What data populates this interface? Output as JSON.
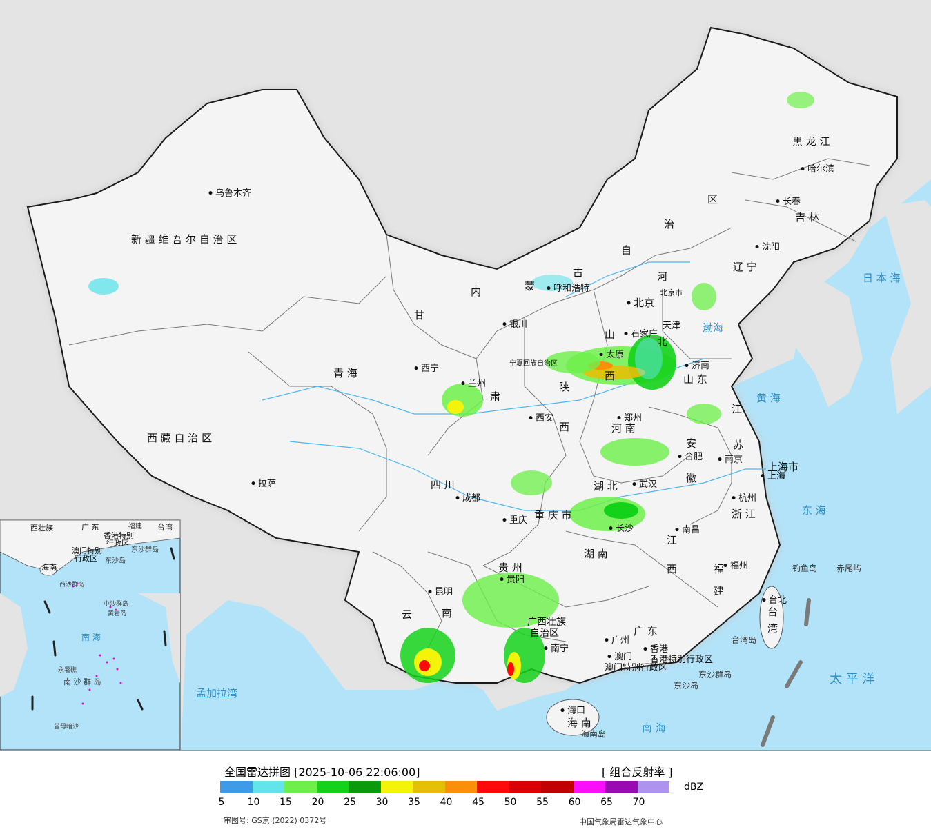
{
  "map": {
    "provinces": [
      {
        "id": "xinjiang",
        "label": "新 疆 维 吾 尔 自 治 区"
      },
      {
        "id": "xizang",
        "label": "西 藏 自 治 区"
      },
      {
        "id": "qinghai",
        "label": "青      海"
      },
      {
        "id": "gansu",
        "label": "甘"
      },
      {
        "id": "gansu2",
        "label": "肃"
      },
      {
        "id": "neimenggu1",
        "label": "内"
      },
      {
        "id": "neimenggu2",
        "label": "蒙"
      },
      {
        "id": "neimenggu3",
        "label": "古"
      },
      {
        "id": "neimenggu4",
        "label": "自"
      },
      {
        "id": "neimenggu5",
        "label": "治"
      },
      {
        "id": "neimenggu6",
        "label": "区"
      },
      {
        "id": "heilongjiang",
        "label": "黑 龙 江"
      },
      {
        "id": "jilin",
        "label": "吉 林"
      },
      {
        "id": "liaoning",
        "label": "辽 宁"
      },
      {
        "id": "hebei",
        "label": "河"
      },
      {
        "id": "hebei2",
        "label": "北"
      },
      {
        "id": "shandong",
        "label": "山 东"
      },
      {
        "id": "shanxi1",
        "label": "山"
      },
      {
        "id": "shanxi2",
        "label": "西"
      },
      {
        "id": "shaanxi1",
        "label": "陕"
      },
      {
        "id": "shaanxi2",
        "label": "西"
      },
      {
        "id": "henan",
        "label": "河 南"
      },
      {
        "id": "jiangsu1",
        "label": "江"
      },
      {
        "id": "jiangsu2",
        "label": "苏"
      },
      {
        "id": "anhui1",
        "label": "安"
      },
      {
        "id": "anhui2",
        "label": "徽"
      },
      {
        "id": "sichuan",
        "label": "四     川"
      },
      {
        "id": "chongqing",
        "label": "重 庆 市"
      },
      {
        "id": "hubei",
        "label": "湖     北"
      },
      {
        "id": "hunan",
        "label": "湖     南"
      },
      {
        "id": "jiangxi1",
        "label": "江"
      },
      {
        "id": "jiangxi2",
        "label": "西"
      },
      {
        "id": "zhejiang",
        "label": "浙 江"
      },
      {
        "id": "fujian1",
        "label": "福"
      },
      {
        "id": "fujian2",
        "label": "建"
      },
      {
        "id": "guizhou",
        "label": "贵 州"
      },
      {
        "id": "yunnan1",
        "label": "云"
      },
      {
        "id": "yunnan2",
        "label": "南"
      },
      {
        "id": "guangxi1",
        "label": "广西壮族"
      },
      {
        "id": "guangxi2",
        "label": "自治区"
      },
      {
        "id": "guangdong",
        "label": "广 东"
      },
      {
        "id": "hainan",
        "label": "海 南"
      },
      {
        "id": "taiwan1",
        "label": "台"
      },
      {
        "id": "taiwan2",
        "label": "湾"
      },
      {
        "id": "shanghai",
        "label": "上海市"
      },
      {
        "id": "tianjin",
        "label": "天津"
      },
      {
        "id": "ningxia",
        "label": "宁夏回族自治区"
      },
      {
        "id": "hk",
        "label": "香港特别行政区"
      },
      {
        "id": "macau",
        "label": "澳门特别行政区"
      }
    ],
    "cities": [
      {
        "id": "urumqi",
        "label": "乌鲁木齐"
      },
      {
        "id": "lhasa",
        "label": "拉萨"
      },
      {
        "id": "xining",
        "label": "西宁"
      },
      {
        "id": "lanzhou",
        "label": "兰州"
      },
      {
        "id": "yinchuan",
        "label": "银川"
      },
      {
        "id": "hohhot",
        "label": "呼和浩特"
      },
      {
        "id": "harbin",
        "label": "哈尔滨"
      },
      {
        "id": "changchun",
        "label": "长春"
      },
      {
        "id": "shenyang",
        "label": "沈阳"
      },
      {
        "id": "beijing",
        "label": "北京"
      },
      {
        "id": "beijing_city",
        "label": "北京市"
      },
      {
        "id": "shijiazhuang",
        "label": "石家庄"
      },
      {
        "id": "taiyuan",
        "label": "太原"
      },
      {
        "id": "jinan",
        "label": "济南"
      },
      {
        "id": "xian",
        "label": "西安"
      },
      {
        "id": "zhengzhou",
        "label": "郑州"
      },
      {
        "id": "hefei",
        "label": "合肥"
      },
      {
        "id": "nanjing",
        "label": "南京"
      },
      {
        "id": "shanghai_c",
        "label": "上海"
      },
      {
        "id": "hangzhou",
        "label": "杭州"
      },
      {
        "id": "wuhan",
        "label": "武汉"
      },
      {
        "id": "chengdu",
        "label": "成都"
      },
      {
        "id": "chongqing_c",
        "label": "重庆"
      },
      {
        "id": "changsha",
        "label": "长沙"
      },
      {
        "id": "nanchang",
        "label": "南昌"
      },
      {
        "id": "fuzhou",
        "label": "福州"
      },
      {
        "id": "guiyang",
        "label": "贵阳"
      },
      {
        "id": "kunming",
        "label": "昆明"
      },
      {
        "id": "nanning",
        "label": "南宁"
      },
      {
        "id": "guangzhou",
        "label": "广州"
      },
      {
        "id": "hongkong",
        "label": "香港"
      },
      {
        "id": "macao",
        "label": "澳门"
      },
      {
        "id": "haikou",
        "label": "海口"
      },
      {
        "id": "taibei",
        "label": "台北"
      }
    ],
    "seas": [
      {
        "id": "bohai",
        "label": "渤海"
      },
      {
        "id": "huanghai",
        "label": "黄  海"
      },
      {
        "id": "donghai",
        "label": "东  海"
      },
      {
        "id": "nanhai",
        "label": "南   海"
      },
      {
        "id": "riben",
        "label": "日 本 海"
      },
      {
        "id": "taipingyang",
        "label": "太   平   洋"
      },
      {
        "id": "mengjiala",
        "label": "孟加拉湾"
      }
    ],
    "islands": [
      {
        "id": "diaoyu",
        "label": "钓鱼岛"
      },
      {
        "id": "chiwei",
        "label": "赤尾屿"
      },
      {
        "id": "taiwandao",
        "label": "台湾岛"
      },
      {
        "id": "dongsha_qd",
        "label": "东沙群岛"
      },
      {
        "id": "dongsha",
        "label": "东沙岛"
      },
      {
        "id": "hainandao",
        "label": "海南岛"
      }
    ],
    "inset": {
      "labels": [
        {
          "id": "in_gx",
          "label": "西壮族"
        },
        {
          "id": "in_gd",
          "label": "广  东"
        },
        {
          "id": "in_fj",
          "label": "福建"
        },
        {
          "id": "in_tw",
          "label": "台湾"
        },
        {
          "id": "in_hk",
          "label": "香港特别"
        },
        {
          "id": "in_hk2",
          "label": "行政区"
        },
        {
          "id": "in_mo",
          "label": "澳门特别"
        },
        {
          "id": "in_mo2",
          "label": "行政区"
        },
        {
          "id": "in_dsqd",
          "label": "东沙群岛"
        },
        {
          "id": "in_dsd",
          "label": "东沙岛"
        },
        {
          "id": "in_hn",
          "label": "海南"
        },
        {
          "id": "in_xsqd",
          "label": "西沙群岛"
        },
        {
          "id": "in_zsqd",
          "label": "中沙群岛"
        },
        {
          "id": "in_hyd",
          "label": "黄岩岛"
        },
        {
          "id": "in_nh",
          "label": "南    海"
        },
        {
          "id": "in_nsqd",
          "label": "南 沙 群 岛"
        },
        {
          "id": "in_cmd",
          "label": "曾母暗沙"
        },
        {
          "id": "in_yxj",
          "label": "永暑礁"
        }
      ]
    }
  },
  "legend": {
    "title": "全国雷达拼图 [2025-10-06 22:06:00]",
    "product": "[ 组合反射率 ]",
    "unit": "dBZ",
    "colors": [
      "#3d9be8",
      "#63e4eb",
      "#6df04a",
      "#14d21a",
      "#0b9a0c",
      "#f4f40a",
      "#e4c007",
      "#fc8f08",
      "#fc0b0a",
      "#d80004",
      "#c10002",
      "#fb0efa",
      "#9a0ab3",
      "#ae93ee"
    ],
    "ticks": [
      "5",
      "10",
      "15",
      "20",
      "25",
      "30",
      "35",
      "40",
      "45",
      "50",
      "55",
      "60",
      "65",
      "70"
    ],
    "approval": "审图号: GS京 (2022) 0372号",
    "source": "中国气象局雷达气象中心"
  }
}
